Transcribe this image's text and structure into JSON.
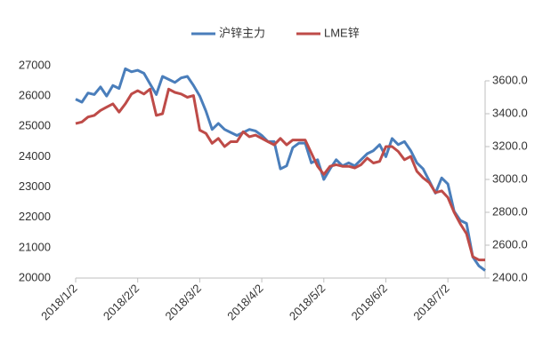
{
  "chart_data": {
    "type": "line",
    "categories": [
      "2018/1/2",
      null,
      null,
      null,
      null,
      null,
      null,
      null,
      null,
      null,
      "2018/2/2",
      null,
      null,
      null,
      null,
      null,
      null,
      null,
      null,
      null,
      "2018/3/2",
      null,
      null,
      null,
      null,
      null,
      null,
      null,
      null,
      null,
      "2018/4/2",
      null,
      null,
      null,
      null,
      null,
      null,
      null,
      null,
      null,
      "2018/5/2",
      null,
      null,
      null,
      null,
      null,
      null,
      null,
      null,
      null,
      "2018/6/2",
      null,
      null,
      null,
      null,
      null,
      null,
      null,
      null,
      null,
      "2018/7/2",
      null,
      null,
      null,
      null,
      null,
      null
    ],
    "series": [
      {
        "name": "沪锌主力",
        "color": "#4a7ebb",
        "values": [
          25900,
          25800,
          26100,
          26050,
          26300,
          26000,
          26350,
          26250,
          26900,
          26800,
          26850,
          26750,
          26400,
          26050,
          26650,
          26550,
          26450,
          26600,
          26650,
          26350,
          26000,
          25500,
          24900,
          25100,
          24900,
          24800,
          24700,
          24800,
          24900,
          24850,
          24700,
          24500,
          24500,
          23600,
          23700,
          24300,
          24450,
          24450,
          23800,
          23900,
          23250,
          23600,
          23900,
          23700,
          23800,
          23700,
          23900,
          24100,
          24200,
          24400,
          24000,
          24600,
          24400,
          24500,
          24200,
          23800,
          23600,
          23200,
          22800,
          23300,
          23100,
          22200,
          21900,
          21800,
          20700,
          20400,
          20250
        ]
      },
      {
        "name": "LME锌",
        "color": "#be4b48",
        "axis": "y2",
        "values": [
          3340,
          3350,
          3380,
          3390,
          3420,
          3440,
          3460,
          3410,
          3460,
          3520,
          3540,
          3520,
          3550,
          3390,
          3400,
          3550,
          3530,
          3520,
          3500,
          3510,
          3300,
          3280,
          3220,
          3250,
          3200,
          3230,
          3230,
          3290,
          3260,
          3270,
          3250,
          3230,
          3210,
          3250,
          3210,
          3240,
          3240,
          3240,
          3160,
          3080,
          3030,
          3080,
          3090,
          3080,
          3080,
          3070,
          3090,
          3130,
          3100,
          3110,
          3200,
          3200,
          3170,
          3120,
          3140,
          3050,
          3010,
          2980,
          2920,
          2930,
          2890,
          2800,
          2730,
          2670,
          2530,
          2510,
          2510
        ]
      }
    ],
    "ylim": [
      20000,
      27000
    ],
    "yticks": [
      20000,
      21000,
      22000,
      23000,
      24000,
      25000,
      26000,
      27000
    ],
    "y2lim": [
      2400,
      3600
    ],
    "y2ticks": [
      {
        "value": 2400,
        "label": "2400.0"
      },
      {
        "value": 2600,
        "label": "2600.0"
      },
      {
        "value": 2800,
        "label": "2800.0"
      },
      {
        "value": 3000,
        "label": "3000.0"
      },
      {
        "value": 3200,
        "label": "3200.0"
      },
      {
        "value": 3400,
        "label": "3400.0"
      },
      {
        "value": 3600,
        "label": "3600.0"
      }
    ],
    "legend": "top"
  }
}
